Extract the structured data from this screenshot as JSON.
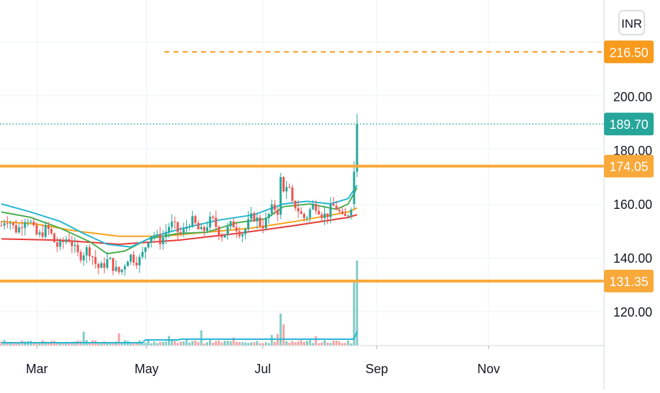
{
  "chart_data": {
    "type": "candlestick",
    "currency_label": "INR",
    "y_ticks": [
      120,
      140,
      160,
      180,
      200
    ],
    "y_tick_labels": [
      "120.00",
      "140.00",
      "160.00",
      "180.00",
      "200.00"
    ],
    "x_tick_labels": [
      "Mar",
      "May",
      "Jul",
      "Sep",
      "Nov"
    ],
    "ylim": [
      108,
      230
    ],
    "last_price": {
      "value": 189.7,
      "label": "189.70",
      "color": "#26a69a"
    },
    "horizontal_levels": [
      {
        "value": 216.5,
        "label": "216.50",
        "style": "dashed",
        "color": "#f89a1c"
      },
      {
        "value": 174.05,
        "label": "174.05",
        "style": "solid",
        "color": "#f8a93a"
      },
      {
        "value": 131.35,
        "label": "131.35",
        "style": "solid",
        "color": "#f8a93a"
      }
    ],
    "colors": {
      "up": "#26a69a",
      "down": "#ef5350",
      "volume_up": "#80cbc4",
      "volume_down": "#f5a3a3",
      "ma_cyan": "#26b6d4",
      "ma_green": "#4caf50",
      "ma_orange": "#f7a21b",
      "ma_red": "#e53935",
      "grid": "#eef0f3",
      "axis_text": "#131722"
    }
  }
}
